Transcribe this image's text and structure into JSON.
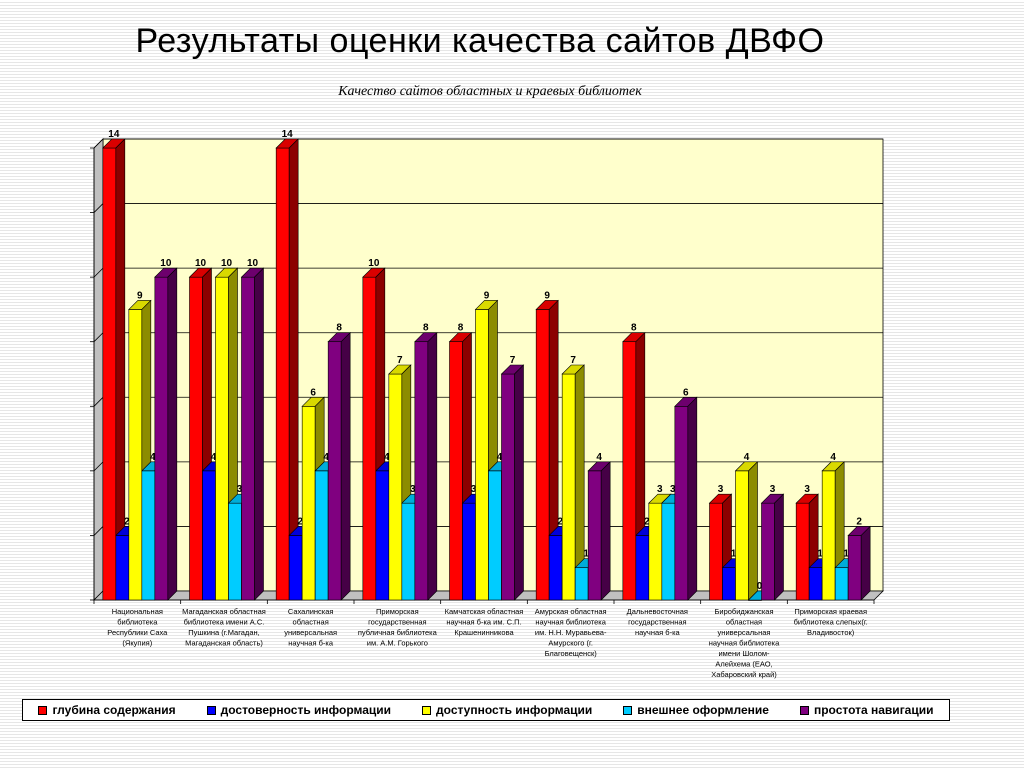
{
  "slide": {
    "title": "Результаты оценки качества сайтов ДВФО"
  },
  "chart_data": {
    "type": "bar",
    "title": "Качество сайтов областных и краевых библиотек",
    "xlabel": "",
    "ylabel": "",
    "ylim": [
      0,
      14
    ],
    "grid": true,
    "legend_position": "bottom",
    "categories": [
      "Национальная библиотека Республики Саха (Якупия)",
      "Магаданская областная библиотека имени А.С. Пушкина (г.Магадан, Магаданская область)",
      "Сахалинская областная универсальная научная б-ка",
      "Приморская государственная публичная библиотека им. А.М. Горького",
      "Камчатская областная научная б-ка им. С.П. Крашенинникова",
      "Амурская областная научная библиотека им. Н.Н. Муравьева-Амурского (г. Благовещенск)",
      "Дальневосточная государственная научная б-ка",
      "Биробиджанская областная универсальная научная библиотека имени Шолом-Алейхема (ЕАО, Хабаровский край)",
      "Приморская краевая библиотека слепых(г. Владивосток)"
    ],
    "category_lines": [
      [
        "Национальная",
        "библиотека",
        "Республики Саха",
        "(Якупия)"
      ],
      [
        "Магаданская областная",
        "библиотека имени А.С.",
        "Пушкина (г.Магадан,",
        "Магаданская область)"
      ],
      [
        "Сахалинская",
        "областная",
        "универсальная",
        "научная б-ка"
      ],
      [
        "Приморская",
        "государственная",
        "публичная библиотека",
        "им. А.М. Горького"
      ],
      [
        "Камчатская областная",
        "научная б-ка им. С.П.",
        "Крашенинникова"
      ],
      [
        "Амурская областная",
        "научная библиотека",
        "им. Н.Н. Муравьева-",
        "Амурского (г.",
        "Благовещенск)"
      ],
      [
        "Дальневосточная",
        "государственная",
        "научная б-ка"
      ],
      [
        "Биробиджанская",
        "областная",
        "универсальная",
        "научная библиотека",
        "имени Шолом-",
        "Алейхема (ЕАО,",
        "Хабаровский край)"
      ],
      [
        "Приморская краевая",
        "библиотека слепых(г.",
        "Владивосток)"
      ]
    ],
    "series": [
      {
        "name": "глубина содержания",
        "color": "#ff0000",
        "values": [
          14,
          10,
          14,
          10,
          8,
          9,
          8,
          3,
          3
        ]
      },
      {
        "name": "достоверность информации",
        "color": "#0000ff",
        "values": [
          2,
          4,
          2,
          4,
          3,
          2,
          2,
          1,
          1
        ]
      },
      {
        "name": "доступность информации",
        "color": "#ffff00",
        "values": [
          9,
          10,
          6,
          7,
          9,
          7,
          3,
          4,
          4
        ]
      },
      {
        "name": "внешнее оформление",
        "color": "#00ccff",
        "values": [
          4,
          3,
          4,
          3,
          4,
          1,
          3,
          0,
          1
        ]
      },
      {
        "name": "простота навигации",
        "color": "#800080",
        "values": [
          10,
          10,
          8,
          8,
          7,
          4,
          6,
          3,
          2
        ]
      }
    ]
  }
}
